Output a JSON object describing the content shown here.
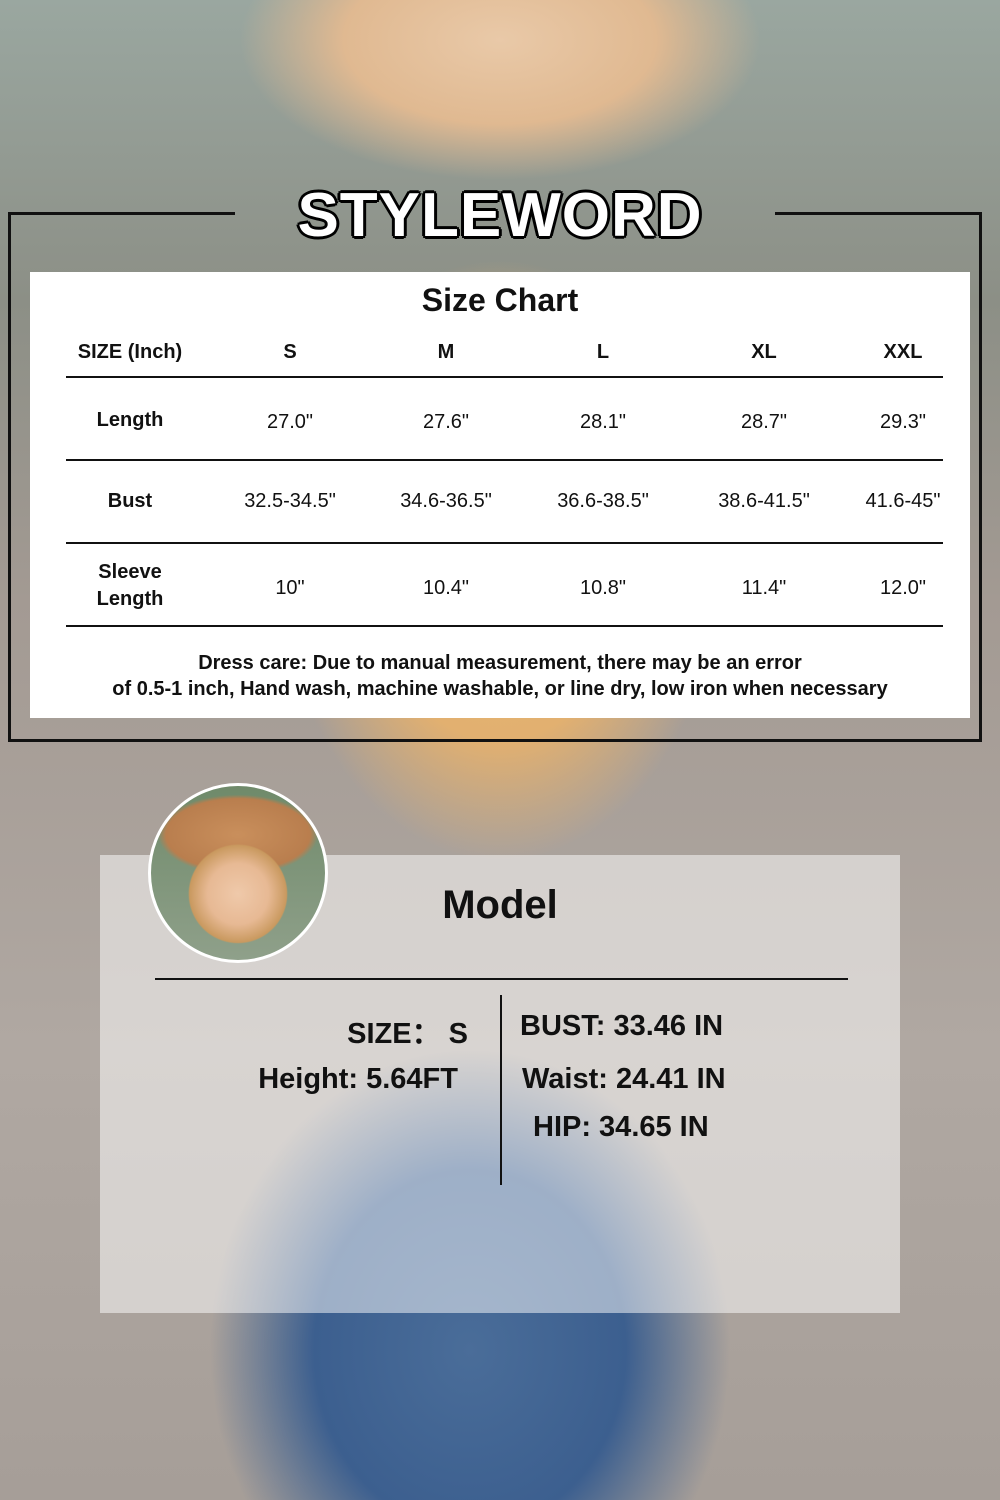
{
  "brand": "STYLEWORD",
  "size_chart": {
    "title": "Size Chart",
    "header": [
      "SIZE (Inch)",
      "S",
      "M",
      "L",
      "XL",
      "XXL"
    ],
    "rows": [
      {
        "label": "Length",
        "values": [
          "27.0\"",
          "27.6\"",
          "28.1\"",
          "28.7\"",
          "29.3\""
        ]
      },
      {
        "label": "Bust",
        "values": [
          "32.5-34.5\"",
          "34.6-36.5\"",
          "36.6-38.5\"",
          "38.6-41.5\"",
          "41.6-45\""
        ]
      },
      {
        "label_lines": [
          "Sleeve",
          "Length"
        ],
        "values": [
          "10\"",
          "10.4\"",
          "10.8\"",
          "11.4\"",
          "12.0\""
        ]
      }
    ],
    "care": [
      "Dress care: Due to manual measurement, there may be an error",
      "of 0.5-1 inch, Hand wash, machine washable, or line dry, low iron when necessary"
    ]
  },
  "model": {
    "title": "Model",
    "size": "SIZE： S",
    "height": "Height:  5.64FT",
    "bust": "BUST: 33.46 IN",
    "waist": "Waist: 24.41 IN",
    "hip": "HIP: 34.65 IN"
  }
}
